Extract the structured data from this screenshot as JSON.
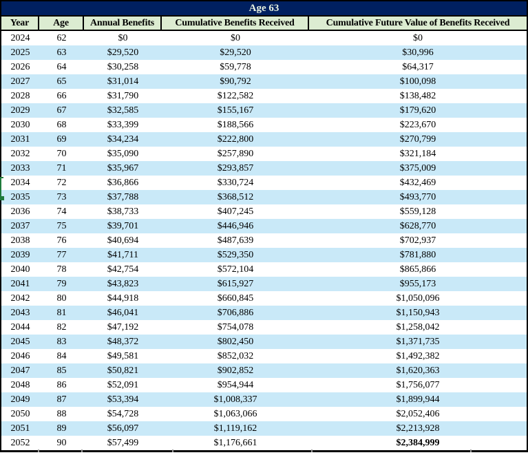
{
  "table": {
    "title": "Age 63",
    "columns": [
      "Year",
      "Age",
      "Annual Benefits",
      "Cumulative Benefits Received",
      "Cumulative Future Value of Benefits Received"
    ],
    "rows": [
      [
        "2024",
        "62",
        "$0",
        "$0",
        "$0"
      ],
      [
        "2025",
        "63",
        "$29,520",
        "$29,520",
        "$30,996"
      ],
      [
        "2026",
        "64",
        "$30,258",
        "$59,778",
        "$64,317"
      ],
      [
        "2027",
        "65",
        "$31,014",
        "$90,792",
        "$100,098"
      ],
      [
        "2028",
        "66",
        "$31,790",
        "$122,582",
        "$138,482"
      ],
      [
        "2029",
        "67",
        "$32,585",
        "$155,167",
        "$179,620"
      ],
      [
        "2030",
        "68",
        "$33,399",
        "$188,566",
        "$223,670"
      ],
      [
        "2031",
        "69",
        "$34,234",
        "$222,800",
        "$270,799"
      ],
      [
        "2032",
        "70",
        "$35,090",
        "$257,890",
        "$321,184"
      ],
      [
        "2033",
        "71",
        "$35,967",
        "$293,857",
        "$375,009"
      ],
      [
        "2034",
        "72",
        "$36,866",
        "$330,724",
        "$432,469"
      ],
      [
        "2035",
        "73",
        "$37,788",
        "$368,512",
        "$493,770"
      ],
      [
        "2036",
        "74",
        "$38,733",
        "$407,245",
        "$559,128"
      ],
      [
        "2037",
        "75",
        "$39,701",
        "$446,946",
        "$628,770"
      ],
      [
        "2038",
        "76",
        "$40,694",
        "$487,639",
        "$702,937"
      ],
      [
        "2039",
        "77",
        "$41,711",
        "$529,350",
        "$781,880"
      ],
      [
        "2040",
        "78",
        "$42,754",
        "$572,104",
        "$865,866"
      ],
      [
        "2041",
        "79",
        "$43,823",
        "$615,927",
        "$955,173"
      ],
      [
        "2042",
        "80",
        "$44,918",
        "$660,845",
        "$1,050,096"
      ],
      [
        "2043",
        "81",
        "$46,041",
        "$706,886",
        "$1,150,943"
      ],
      [
        "2044",
        "82",
        "$47,192",
        "$754,078",
        "$1,258,042"
      ],
      [
        "2045",
        "83",
        "$48,372",
        "$802,450",
        "$1,371,735"
      ],
      [
        "2046",
        "84",
        "$49,581",
        "$852,032",
        "$1,492,382"
      ],
      [
        "2047",
        "85",
        "$50,821",
        "$902,852",
        "$1,620,363"
      ],
      [
        "2048",
        "86",
        "$52,091",
        "$954,944",
        "$1,756,077"
      ],
      [
        "2049",
        "87",
        "$53,394",
        "$1,008,337",
        "$1,899,944"
      ],
      [
        "2050",
        "88",
        "$54,728",
        "$1,063,066",
        "$2,052,406"
      ],
      [
        "2051",
        "89",
        "$56,097",
        "$1,119,162",
        "$2,213,928"
      ],
      [
        "2052",
        "90",
        "$57,499",
        "$1,176,661",
        "$2,384,999"
      ]
    ],
    "final_value_bold": true
  },
  "colors": {
    "title_bg": "#002060",
    "title_text": "#E9F3E1",
    "header_bg": "#DCECD1",
    "row_alt_bg": "#C9E9F8",
    "row_bg": "#FFFFFF",
    "border": "#000000",
    "selection_artifact": "#1F7A3C"
  }
}
